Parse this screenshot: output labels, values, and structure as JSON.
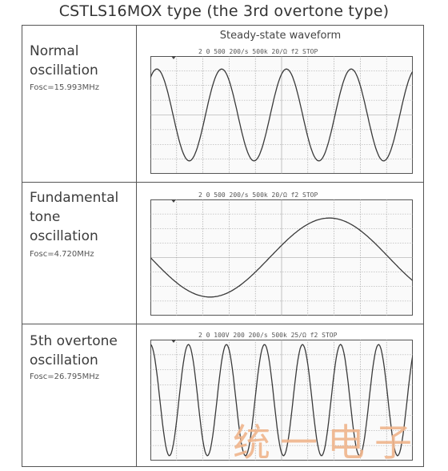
{
  "title": "CSTLS16MOX type (the 3rd overtone type)",
  "column_header": "Steady-state waveform",
  "rows": [
    {
      "label_lines": [
        "Normal",
        "oscillation"
      ],
      "fosc": "Fosc=15.993MHz",
      "scope_header": [
        "2 0",
        "500",
        "200/s",
        "500k",
        "20/Ω",
        "f2 STOP"
      ],
      "wave_periods": 4.05,
      "wave_phase": 0.15,
      "wave_amplitude": 0.78
    },
    {
      "label_lines": [
        "Fundamental",
        "tone",
        "oscillation"
      ],
      "fosc": "Fosc=4.720MHz",
      "scope_header": [
        "2 0",
        "500",
        "200/s",
        "500k",
        "20/Ω",
        "f2 STOP"
      ],
      "wave_periods": 1.1,
      "wave_phase": -0.5,
      "wave_amplitude": 0.68
    },
    {
      "label_lines": [
        "5th overtone",
        "oscillation"
      ],
      "fosc": "Fosc=26.795MHz",
      "scope_header": [
        "2 0",
        "100V",
        "200",
        "200/s",
        "500k",
        "25/Ω",
        "f2 STOP"
      ],
      "wave_periods": 6.9,
      "wave_phase": 0.25,
      "wave_amplitude": 0.92
    }
  ],
  "watermark": "统一电子",
  "colors": {
    "border": "#555555",
    "grid": "#9a9a9a",
    "trace": "#3a3a3a",
    "watermark": "#f0b58c"
  }
}
